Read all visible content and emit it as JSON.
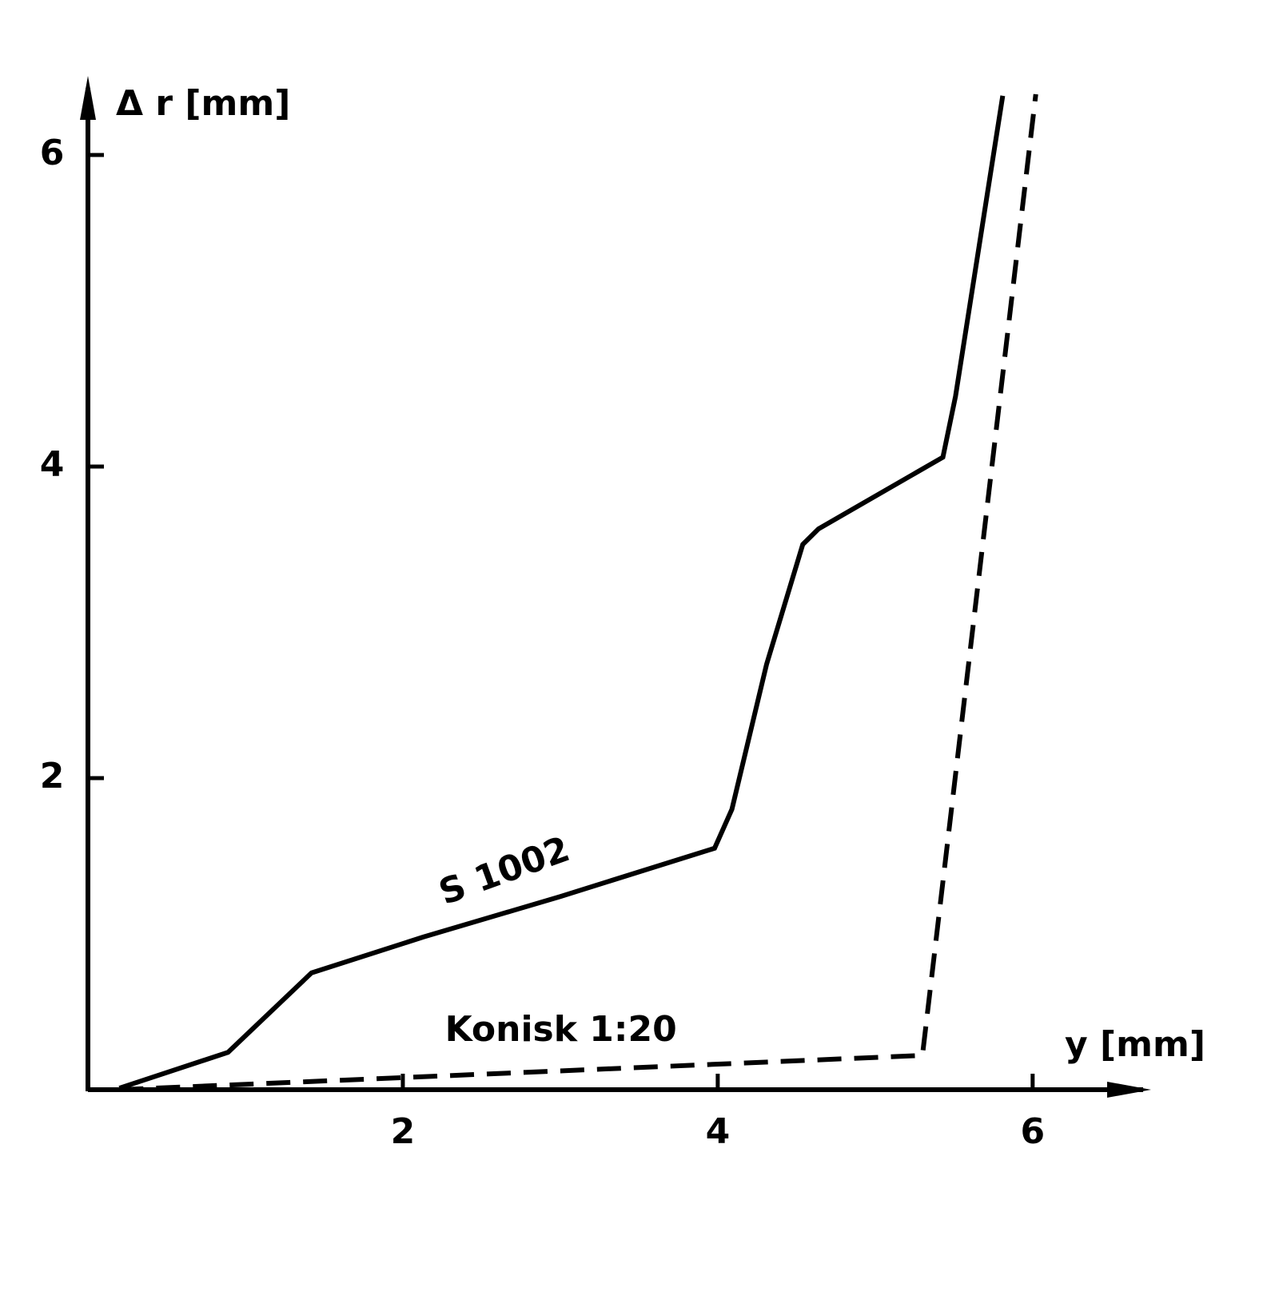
{
  "chart_data": {
    "type": "line",
    "x_label": "y [mm]",
    "y_label": "Δ r [mm]",
    "xlim": [
      0,
      6.6
    ],
    "ylim": [
      0,
      6.4
    ],
    "xticks": [
      2,
      4,
      6
    ],
    "yticks": [
      2,
      4,
      6
    ],
    "series": [
      {
        "name": "S 1002",
        "color": "#000000",
        "dash": false,
        "x": [
          0.2,
          0.89,
          1.42,
          2.13,
          3.0,
          3.98,
          4.09,
          4.31,
          4.54,
          4.64,
          5.43,
          5.51,
          5.81
        ],
        "values": [
          0.01,
          0.24,
          0.75,
          0.98,
          1.24,
          1.55,
          1.8,
          2.73,
          3.5,
          3.6,
          4.06,
          4.45,
          6.38
        ]
      },
      {
        "name": "Konisk 1:20",
        "color": "#000000",
        "dash": true,
        "x": [
          0.2,
          5.3,
          6.02
        ],
        "values": [
          0.0,
          0.22,
          6.39
        ]
      }
    ]
  }
}
